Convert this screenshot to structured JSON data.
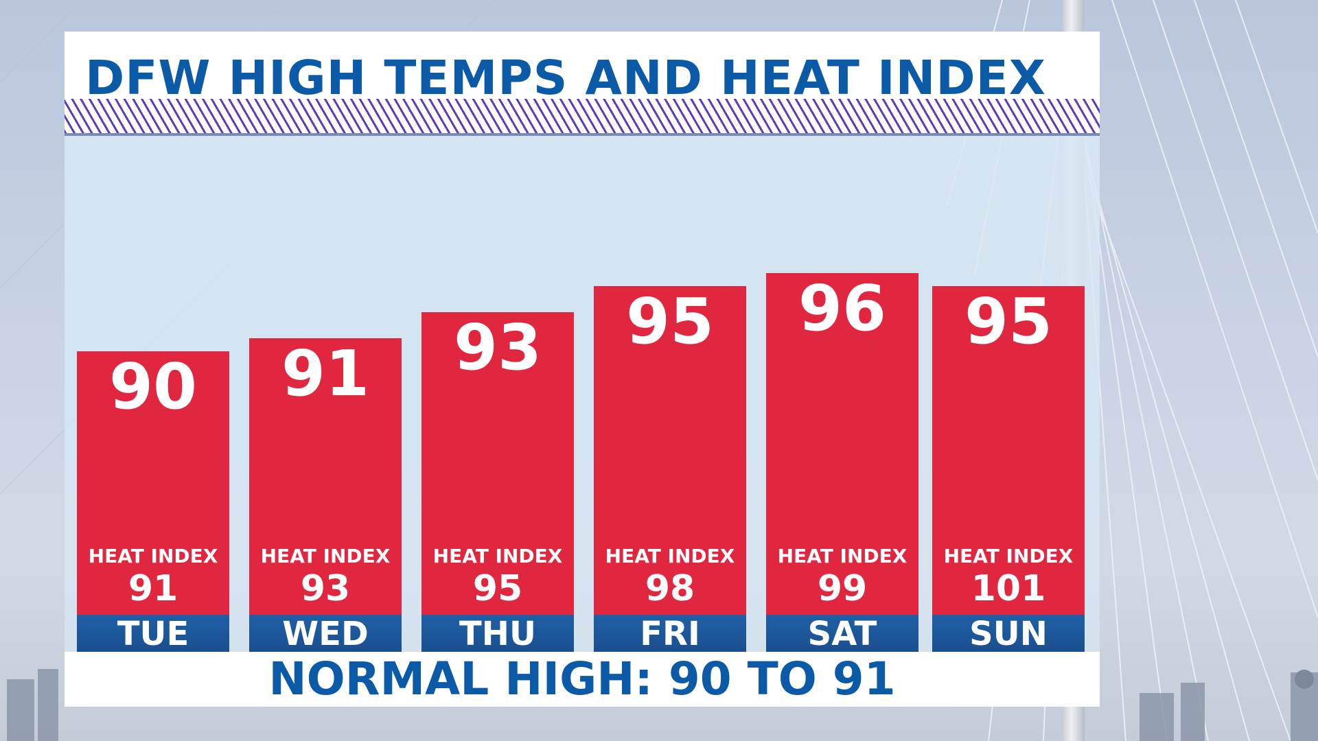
{
  "title": "DFW HIGH TEMPS AND HEAT INDEX",
  "footer": "NORMAL HIGH: 90 TO 91",
  "heat_index_label": "HEAT INDEX",
  "colors": {
    "title": "#0a5aa8",
    "bar": "#e1273f",
    "day_band": "#1a4f8f",
    "hatch": "#5f3bb5"
  },
  "chart_data": {
    "type": "bar",
    "title": "DFW HIGH TEMPS AND HEAT INDEX",
    "xlabel": "",
    "ylabel": "",
    "categories": [
      "TUE",
      "WED",
      "THU",
      "FRI",
      "SAT",
      "SUN"
    ],
    "series": [
      {
        "name": "",
        "values": [
          90,
          91,
          93,
          95,
          96,
          95
        ]
      }
    ],
    "heat_index": [
      91,
      93,
      95,
      98,
      99,
      101
    ],
    "ylim": [
      0,
      96
    ],
    "grid": false,
    "legend": "none"
  }
}
